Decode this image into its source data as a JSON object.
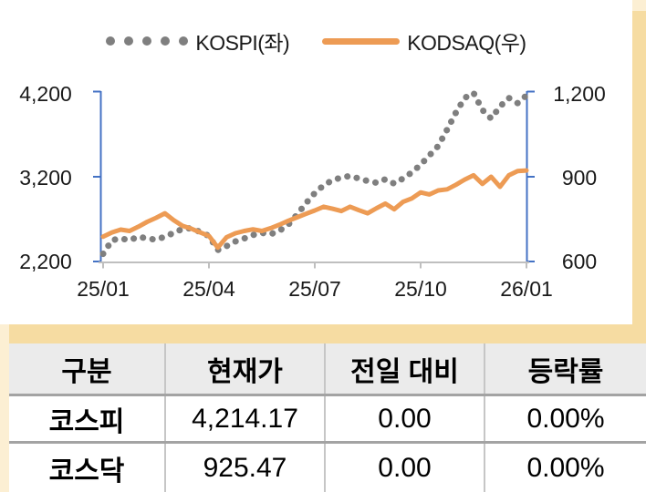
{
  "colors": {
    "page_background": "#FCEFD3",
    "panel_tan": "#F6DCA2",
    "kospi_gray": "#7F7F7F",
    "kosdaq_orange": "#ED9B54",
    "axis_blue": "#4472C4",
    "x_axis_gray": "#BFBFBF"
  },
  "legend": {
    "items": [
      {
        "label": "KOSPI(좌)",
        "marker": "dotted",
        "color": "#7F7F7F"
      },
      {
        "label": "KODSAQ(우)",
        "marker": "solid-line",
        "color": "#ED9B54"
      }
    ]
  },
  "chart_data": {
    "type": "line",
    "title": "",
    "x_axis": {
      "ticks": [
        "25/01",
        "25/04",
        "25/07",
        "25/10",
        "26/01"
      ],
      "note": "monthly data Jan 2025 - Jan 2026, evenly spaced"
    },
    "left_axis": {
      "ticks": [
        "4,200",
        "3,200",
        "2,200"
      ],
      "range": [
        2200,
        4200
      ]
    },
    "right_axis": {
      "ticks": [
        "1,200",
        "900",
        "600"
      ],
      "range": [
        600,
        1200
      ]
    },
    "grid": false,
    "legend_position": "top-center",
    "series": [
      {
        "name": "KOSPI(좌)",
        "axis": "left",
        "style": "dotted",
        "color": "#7F7F7F",
        "values": [
          2300,
          2460,
          2480,
          2460,
          2500,
          2480,
          2465,
          2500,
          2545,
          2590,
          2600,
          2555,
          2510,
          2345,
          2390,
          2445,
          2480,
          2520,
          2545,
          2530,
          2570,
          2640,
          2760,
          2890,
          3010,
          3100,
          3160,
          3190,
          3210,
          3180,
          3150,
          3130,
          3170,
          3120,
          3180,
          3250,
          3340,
          3450,
          3560,
          3750,
          3950,
          4120,
          4180,
          3980,
          3880,
          4020,
          4120,
          4060,
          4150
        ]
      },
      {
        "name": "KODSAQ(우)",
        "axis": "right",
        "style": "solid",
        "color": "#ED9B54",
        "values": [
          690,
          705,
          715,
          710,
          725,
          742,
          756,
          772,
          748,
          728,
          718,
          705,
          693,
          652,
          688,
          702,
          710,
          716,
          710,
          720,
          732,
          746,
          758,
          770,
          782,
          795,
          788,
          780,
          795,
          783,
          772,
          790,
          806,
          786,
          812,
          824,
          845,
          838,
          852,
          856,
          872,
          890,
          905,
          875,
          900,
          865,
          905,
          920,
          922
        ]
      }
    ]
  },
  "table": {
    "headers": [
      "구분",
      "현재가",
      "전일 대비",
      "등락률"
    ],
    "rows": [
      [
        "코스피",
        "4,214.17",
        "0.00",
        "0.00%"
      ],
      [
        "코스닥",
        "925.47",
        "0.00",
        "0.00%"
      ]
    ]
  }
}
